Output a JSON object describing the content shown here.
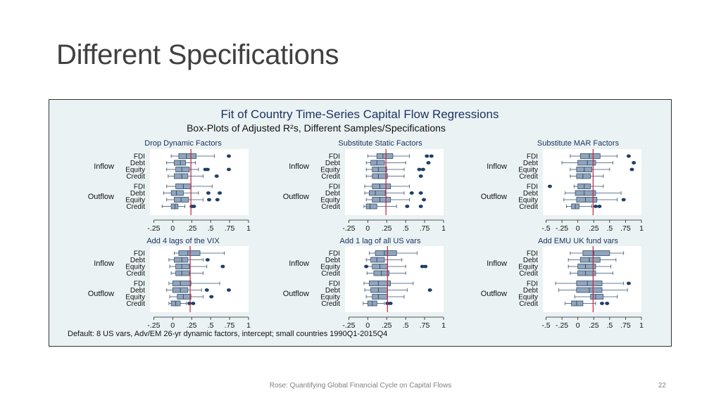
{
  "slide": {
    "title": "Different Specifications"
  },
  "footer": {
    "text": "Rose: Quantifying Global Financial Cycle on Capital Flows",
    "page": "22"
  },
  "chart_data": {
    "type": "boxplot",
    "title": "Fit of Country Time-Series Capital Flow Regressions",
    "subtitle": "Box-Plots of Adjusted R²s, Different Samples/Specifications",
    "note": "Default: 8 US vars, Adv/EM 26-yr dynamic factors, intercept; small countries 1990Q1-2015Q4",
    "groups": [
      "Inflow",
      "Outflow"
    ],
    "rows": [
      "FDI",
      "Debt",
      "Equity",
      "Credit"
    ],
    "colors": {
      "box": "#90a4bb",
      "box_edge": "#34516e",
      "whisker": "#34516e",
      "outlier": "#1f3f66",
      "reference": "#c0203a",
      "panel_bg": "#ffffff",
      "figure_bg": "#eaf2f3",
      "title": "#1d3461"
    },
    "panels": [
      {
        "title": "Drop Dynamic Factors",
        "xlim": [
          -0.3,
          1.0
        ],
        "xticks": [
          "-.25",
          "0",
          ".25",
          ".5",
          ".75",
          "1"
        ],
        "xtick_values": [
          -0.25,
          0,
          0.25,
          0.5,
          0.75,
          1
        ],
        "reference": 0.24,
        "boxes": [
          {
            "group": "Inflow",
            "row": "FDI",
            "wmin": -0.02,
            "q1": 0.08,
            "med": 0.18,
            "q3": 0.31,
            "wmax": 0.55,
            "outliers": [
              0.74
            ]
          },
          {
            "group": "Inflow",
            "row": "Debt",
            "wmin": -0.08,
            "q1": 0.02,
            "med": 0.1,
            "q3": 0.17,
            "wmax": 0.3,
            "outliers": []
          },
          {
            "group": "Inflow",
            "row": "Equity",
            "wmin": -0.08,
            "q1": 0.04,
            "med": 0.12,
            "q3": 0.22,
            "wmax": 0.34,
            "outliers": [
              0.43,
              0.46,
              0.74
            ]
          },
          {
            "group": "Inflow",
            "row": "Credit",
            "wmin": -0.06,
            "q1": 0.02,
            "med": 0.12,
            "q3": 0.2,
            "wmax": 0.4,
            "outliers": [
              0.58
            ]
          },
          {
            "group": "Outflow",
            "row": "FDI",
            "wmin": -0.08,
            "q1": 0.04,
            "med": 0.14,
            "q3": 0.24,
            "wmax": 0.52,
            "outliers": []
          },
          {
            "group": "Outflow",
            "row": "Debt",
            "wmin": -0.12,
            "q1": -0.02,
            "med": 0.05,
            "q3": 0.14,
            "wmax": 0.34,
            "outliers": [
              0.47,
              0.62
            ]
          },
          {
            "group": "Outflow",
            "row": "Equity",
            "wmin": -0.08,
            "q1": 0.02,
            "med": 0.11,
            "q3": 0.21,
            "wmax": 0.4,
            "outliers": [
              0.48,
              0.59
            ]
          },
          {
            "group": "Outflow",
            "row": "Credit",
            "wmin": -0.14,
            "q1": -0.02,
            "med": 0.03,
            "q3": 0.07,
            "wmax": 0.16,
            "outliers": [
              0.25,
              0.28
            ]
          }
        ]
      },
      {
        "title": "Substitute Static Factors",
        "xlim": [
          -0.3,
          1.0
        ],
        "xticks": [
          "-.25",
          "0",
          ".25",
          ".5",
          ".75",
          "1"
        ],
        "xtick_values": [
          -0.25,
          0,
          0.25,
          0.5,
          0.75,
          1
        ],
        "reference": 0.24,
        "boxes": [
          {
            "group": "Inflow",
            "row": "FDI",
            "wmin": 0.0,
            "q1": 0.12,
            "med": 0.2,
            "q3": 0.33,
            "wmax": 0.55,
            "outliers": [
              0.78,
              0.84
            ]
          },
          {
            "group": "Inflow",
            "row": "Debt",
            "wmin": -0.02,
            "q1": 0.04,
            "med": 0.12,
            "q3": 0.22,
            "wmax": 0.5,
            "outliers": [
              0.8
            ]
          },
          {
            "group": "Inflow",
            "row": "Equity",
            "wmin": -0.02,
            "q1": 0.06,
            "med": 0.14,
            "q3": 0.25,
            "wmax": 0.48,
            "outliers": [
              0.68,
              0.73
            ]
          },
          {
            "group": "Inflow",
            "row": "Credit",
            "wmin": -0.02,
            "q1": 0.06,
            "med": 0.14,
            "q3": 0.26,
            "wmax": 0.48,
            "outliers": [
              0.7
            ]
          },
          {
            "group": "Outflow",
            "row": "FDI",
            "wmin": -0.04,
            "q1": 0.06,
            "med": 0.16,
            "q3": 0.3,
            "wmax": 0.55,
            "outliers": []
          },
          {
            "group": "Outflow",
            "row": "Debt",
            "wmin": -0.04,
            "q1": 0.02,
            "med": 0.1,
            "q3": 0.23,
            "wmax": 0.48,
            "outliers": [
              0.58,
              0.7
            ]
          },
          {
            "group": "Outflow",
            "row": "Equity",
            "wmin": -0.02,
            "q1": 0.06,
            "med": 0.16,
            "q3": 0.3,
            "wmax": 0.55,
            "outliers": [
              0.74
            ]
          },
          {
            "group": "Outflow",
            "row": "Credit",
            "wmin": -0.05,
            "q1": -0.02,
            "med": 0.03,
            "q3": 0.12,
            "wmax": 0.38,
            "outliers": [
              0.52,
              0.7
            ]
          }
        ]
      },
      {
        "title": "Substitute MAR Factors",
        "xlim": [
          -0.55,
          1.0
        ],
        "xticks": [
          "-.5",
          "-.25",
          "0",
          ".25",
          ".5",
          ".75",
          "1"
        ],
        "xtick_values": [
          -0.5,
          -0.25,
          0,
          0.25,
          0.5,
          0.75,
          1
        ],
        "reference": 0.24,
        "boxes": [
          {
            "group": "Inflow",
            "row": "FDI",
            "wmin": -0.12,
            "q1": 0.04,
            "med": 0.18,
            "q3": 0.35,
            "wmax": 0.62,
            "outliers": [
              0.8
            ]
          },
          {
            "group": "Inflow",
            "row": "Debt",
            "wmin": -0.25,
            "q1": 0.0,
            "med": 0.15,
            "q3": 0.28,
            "wmax": 0.55,
            "outliers": [
              0.88
            ]
          },
          {
            "group": "Inflow",
            "row": "Equity",
            "wmin": -0.12,
            "q1": -0.02,
            "med": 0.1,
            "q3": 0.22,
            "wmax": 0.5,
            "outliers": [
              0.85
            ]
          },
          {
            "group": "Inflow",
            "row": "Credit",
            "wmin": -0.12,
            "q1": -0.02,
            "med": 0.08,
            "q3": 0.2,
            "wmax": 0.4,
            "outliers": []
          },
          {
            "group": "Outflow",
            "row": "FDI",
            "wmin": -0.06,
            "q1": 0.0,
            "med": 0.1,
            "q3": 0.2,
            "wmax": 0.4,
            "outliers": [
              -0.44
            ]
          },
          {
            "group": "Outflow",
            "row": "Debt",
            "wmin": -0.2,
            "q1": -0.04,
            "med": 0.1,
            "q3": 0.28,
            "wmax": 0.68,
            "outliers": []
          },
          {
            "group": "Outflow",
            "row": "Equity",
            "wmin": -0.22,
            "q1": -0.02,
            "med": 0.12,
            "q3": 0.3,
            "wmax": 0.62,
            "outliers": [
              0.72
            ]
          },
          {
            "group": "Outflow",
            "row": "Credit",
            "wmin": -0.18,
            "q1": -0.1,
            "med": -0.04,
            "q3": 0.02,
            "wmax": 0.22,
            "outliers": [
              0.28,
              0.34
            ]
          }
        ]
      },
      {
        "title": "Add 4 lags of the VIX",
        "xlim": [
          -0.3,
          1.0
        ],
        "xticks": [
          "-.25",
          "0",
          ".25",
          ".5",
          ".75",
          "1"
        ],
        "xtick_values": [
          -0.25,
          0,
          0.25,
          0.5,
          0.75,
          1
        ],
        "reference": 0.23,
        "boxes": [
          {
            "group": "Inflow",
            "row": "FDI",
            "wmin": 0.02,
            "q1": 0.08,
            "med": 0.2,
            "q3": 0.36,
            "wmax": 0.68,
            "outliers": []
          },
          {
            "group": "Inflow",
            "row": "Debt",
            "wmin": -0.05,
            "q1": 0.02,
            "med": 0.12,
            "q3": 0.2,
            "wmax": 0.4,
            "outliers": [
              0.46
            ]
          },
          {
            "group": "Inflow",
            "row": "Equity",
            "wmin": -0.04,
            "q1": 0.04,
            "med": 0.12,
            "q3": 0.22,
            "wmax": 0.45,
            "outliers": [
              0.66
            ]
          },
          {
            "group": "Inflow",
            "row": "Credit",
            "wmin": -0.02,
            "q1": 0.04,
            "med": 0.12,
            "q3": 0.22,
            "wmax": 0.4,
            "outliers": []
          },
          {
            "group": "Outflow",
            "row": "FDI",
            "wmin": -0.05,
            "q1": 0.0,
            "med": 0.1,
            "q3": 0.24,
            "wmax": 0.62,
            "outliers": []
          },
          {
            "group": "Outflow",
            "row": "Debt",
            "wmin": -0.08,
            "q1": 0.0,
            "med": 0.1,
            "q3": 0.2,
            "wmax": 0.38,
            "outliers": [
              0.45,
              0.74
            ]
          },
          {
            "group": "Outflow",
            "row": "Equity",
            "wmin": -0.04,
            "q1": 0.06,
            "med": 0.14,
            "q3": 0.24,
            "wmax": 0.4,
            "outliers": [
              0.51
            ]
          },
          {
            "group": "Outflow",
            "row": "Credit",
            "wmin": -0.05,
            "q1": -0.02,
            "med": 0.04,
            "q3": 0.1,
            "wmax": 0.18,
            "outliers": [
              0.22,
              0.27
            ]
          }
        ]
      },
      {
        "title": "Add 1 lag of all US vars",
        "xlim": [
          -0.3,
          1.0
        ],
        "xticks": [
          "-.25",
          "0",
          ".25",
          ".5",
          ".75",
          "1"
        ],
        "xtick_values": [
          -0.25,
          0,
          0.25,
          0.5,
          0.75,
          1
        ],
        "reference": 0.26,
        "boxes": [
          {
            "group": "Inflow",
            "row": "FDI",
            "wmin": 0.02,
            "q1": 0.1,
            "med": 0.22,
            "q3": 0.38,
            "wmax": 0.65,
            "outliers": []
          },
          {
            "group": "Inflow",
            "row": "Debt",
            "wmin": -0.02,
            "q1": 0.04,
            "med": 0.12,
            "q3": 0.22,
            "wmax": 0.45,
            "outliers": []
          },
          {
            "group": "Inflow",
            "row": "Equity",
            "wmin": -0.02,
            "q1": 0.06,
            "med": 0.16,
            "q3": 0.26,
            "wmax": 0.5,
            "outliers": [
              -0.02,
              0.72,
              0.76
            ]
          },
          {
            "group": "Inflow",
            "row": "Credit",
            "wmin": -0.01,
            "q1": 0.08,
            "med": 0.18,
            "q3": 0.28,
            "wmax": 0.5,
            "outliers": []
          },
          {
            "group": "Outflow",
            "row": "FDI",
            "wmin": -0.05,
            "q1": 0.02,
            "med": 0.14,
            "q3": 0.3,
            "wmax": 0.6,
            "outliers": []
          },
          {
            "group": "Outflow",
            "row": "Debt",
            "wmin": -0.04,
            "q1": 0.04,
            "med": 0.14,
            "q3": 0.26,
            "wmax": 0.52,
            "outliers": [
              0.82
            ]
          },
          {
            "group": "Outflow",
            "row": "Equity",
            "wmin": -0.02,
            "q1": 0.06,
            "med": 0.14,
            "q3": 0.26,
            "wmax": 0.48,
            "outliers": []
          },
          {
            "group": "Outflow",
            "row": "Credit",
            "wmin": -0.06,
            "q1": 0.0,
            "med": 0.06,
            "q3": 0.12,
            "wmax": 0.22,
            "outliers": [
              0.26,
              0.3
            ]
          }
        ]
      },
      {
        "title": "Add EMU UK fund vars",
        "xlim": [
          -0.55,
          1.0
        ],
        "xticks": [
          "-.5",
          "-.25",
          "0",
          ".25",
          ".5",
          ".75",
          "1"
        ],
        "xtick_values": [
          -0.5,
          -0.25,
          0,
          0.25,
          0.5,
          0.75,
          1
        ],
        "reference": 0.24,
        "boxes": [
          {
            "group": "Inflow",
            "row": "FDI",
            "wmin": -0.12,
            "q1": 0.08,
            "med": 0.25,
            "q3": 0.5,
            "wmax": 0.72,
            "outliers": []
          },
          {
            "group": "Inflow",
            "row": "Debt",
            "wmin": -0.15,
            "q1": 0.04,
            "med": 0.18,
            "q3": 0.35,
            "wmax": 0.6,
            "outliers": []
          },
          {
            "group": "Inflow",
            "row": "Equity",
            "wmin": -0.15,
            "q1": 0.0,
            "med": 0.12,
            "q3": 0.28,
            "wmax": 0.52,
            "outliers": []
          },
          {
            "group": "Inflow",
            "row": "Credit",
            "wmin": -0.12,
            "q1": 0.0,
            "med": 0.12,
            "q3": 0.28,
            "wmax": 0.55,
            "outliers": []
          },
          {
            "group": "Outflow",
            "row": "FDI",
            "wmin": -0.35,
            "q1": -0.02,
            "med": 0.15,
            "q3": 0.38,
            "wmax": 0.72,
            "outliers": [
              0.8
            ]
          },
          {
            "group": "Outflow",
            "row": "Debt",
            "wmin": -0.3,
            "q1": -0.02,
            "med": 0.18,
            "q3": 0.38,
            "wmax": 0.78,
            "outliers": []
          },
          {
            "group": "Outflow",
            "row": "Equity",
            "wmin": -0.05,
            "q1": 0.2,
            "med": 0.28,
            "q3": 0.4,
            "wmax": 0.62,
            "outliers": []
          },
          {
            "group": "Outflow",
            "row": "Credit",
            "wmin": -0.2,
            "q1": -0.1,
            "med": -0.02,
            "q3": 0.08,
            "wmax": 0.28,
            "outliers": [
              0.38,
              0.46
            ]
          }
        ]
      }
    ]
  }
}
